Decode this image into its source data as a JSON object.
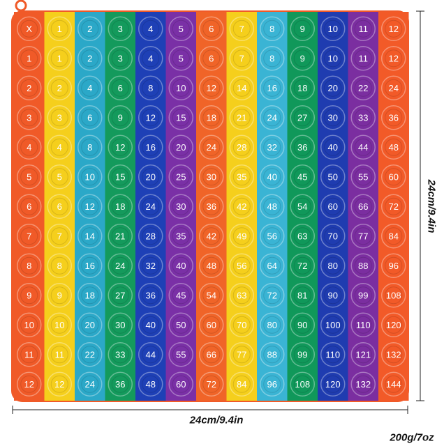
{
  "table": {
    "rows": [
      [
        "X",
        1,
        2,
        3,
        4,
        5,
        6,
        7,
        8,
        9,
        10,
        11,
        12
      ],
      [
        1,
        1,
        2,
        3,
        4,
        5,
        6,
        7,
        8,
        9,
        10,
        11,
        12
      ],
      [
        2,
        2,
        4,
        6,
        8,
        10,
        12,
        14,
        16,
        18,
        20,
        22,
        24
      ],
      [
        3,
        3,
        6,
        9,
        12,
        15,
        18,
        21,
        24,
        27,
        30,
        33,
        36
      ],
      [
        4,
        4,
        8,
        12,
        16,
        20,
        24,
        28,
        32,
        36,
        40,
        44,
        48
      ],
      [
        5,
        5,
        10,
        15,
        20,
        25,
        30,
        35,
        40,
        45,
        50,
        55,
        60
      ],
      [
        6,
        6,
        12,
        18,
        24,
        30,
        36,
        42,
        48,
        54,
        60,
        66,
        72
      ],
      [
        7,
        7,
        14,
        21,
        28,
        35,
        42,
        49,
        56,
        63,
        70,
        77,
        84
      ],
      [
        8,
        8,
        16,
        24,
        32,
        40,
        48,
        56,
        64,
        72,
        80,
        88,
        96
      ],
      [
        9,
        9,
        18,
        27,
        36,
        45,
        54,
        63,
        72,
        81,
        90,
        99,
        108
      ],
      [
        10,
        10,
        20,
        30,
        40,
        50,
        60,
        70,
        80,
        90,
        100,
        110,
        120
      ],
      [
        11,
        11,
        22,
        33,
        44,
        55,
        66,
        77,
        88,
        99,
        110,
        121,
        132
      ],
      [
        12,
        12,
        24,
        36,
        48,
        60,
        72,
        84,
        96,
        108,
        120,
        132,
        144
      ]
    ]
  },
  "dimensions": {
    "height": "24cm/9.4in",
    "width": "24cm/9.4in",
    "weight": "200g/7oz"
  }
}
